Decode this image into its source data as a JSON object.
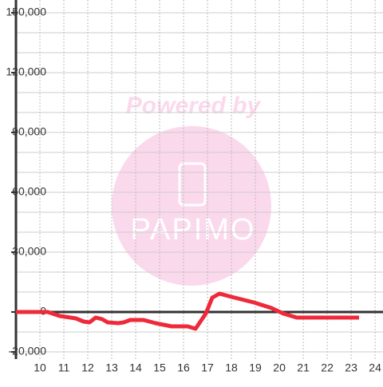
{
  "chart_data": {
    "type": "line",
    "x": [
      9,
      10.33,
      10.83,
      11.5,
      11.83,
      12.07,
      12.33,
      12.6,
      12.83,
      13.27,
      13.5,
      13.77,
      14.33,
      14.83,
      15.5,
      16.17,
      16.5,
      16.93,
      17.2,
      17.5,
      18,
      18.93,
      19.67,
      20.17,
      20.73,
      23.33
    ],
    "series": [
      {
        "color": "#ee2a3a",
        "values": [
          0,
          0,
          -2000,
          -3200,
          -4800,
          -5200,
          -2800,
          -3600,
          -5200,
          -5600,
          -5200,
          -4000,
          -4000,
          -5600,
          -7200,
          -7200,
          -8400,
          -800,
          7200,
          9200,
          7600,
          4800,
          2000,
          -800,
          -2800,
          -2800
        ]
      }
    ],
    "xlim": [
      9,
      24.33
    ],
    "xticks": [
      10,
      11,
      12,
      13,
      14,
      15,
      16,
      17,
      18,
      19,
      20,
      21,
      22,
      23,
      24
    ],
    "ylim": [
      -20000,
      150000
    ],
    "yticks": [
      {
        "value": 150000,
        "label": "150,000"
      },
      {
        "value": 120000,
        "label": "120,000"
      },
      {
        "value": 90000,
        "label": "90,000"
      },
      {
        "value": 60000,
        "label": "60,000"
      },
      {
        "value": 30000,
        "label": "30,000"
      },
      0,
      {
        "value": -20000,
        "label": "-20,000"
      }
    ],
    "ygrid": [
      -10000,
      10000,
      20000,
      40000,
      50000,
      70000,
      80000,
      100000,
      110000,
      130000,
      140000
    ],
    "grid": true
  },
  "watermark": {
    "top": "Powered by",
    "logo": "PAPIMO"
  }
}
